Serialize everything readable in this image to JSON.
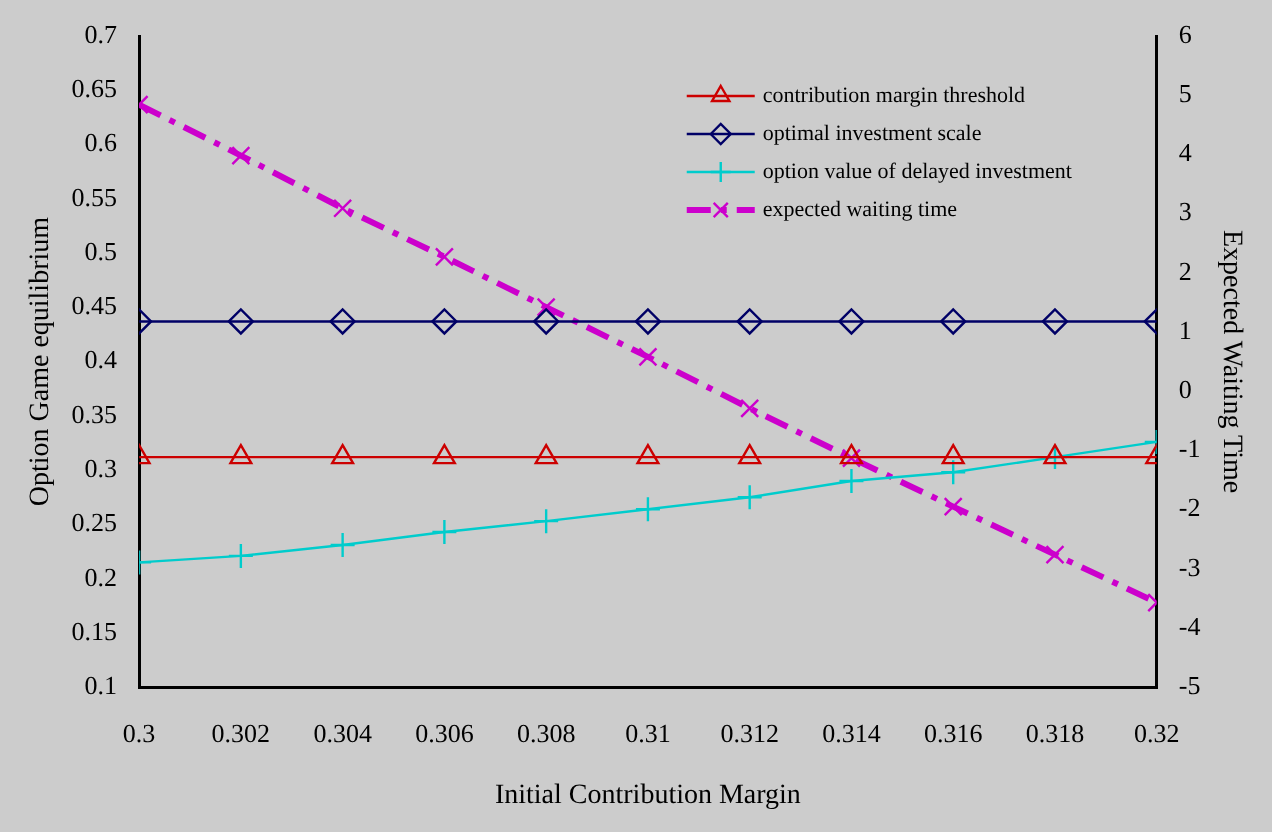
{
  "chart_data": {
    "type": "line",
    "xlabel": "Initial Contribution Margin",
    "ylabel": "Option Game equilibrium",
    "y2label": "Expected Waiting Time",
    "x": [
      0.3,
      0.302,
      0.304,
      0.306,
      0.308,
      0.31,
      0.312,
      0.314,
      0.316,
      0.318,
      0.32
    ],
    "series": [
      {
        "name": "contribution margin threshold",
        "color": "#cc0000",
        "marker": "triangle",
        "line_style": "solid",
        "values": [
          0.312,
          0.312,
          0.312,
          0.312,
          0.312,
          0.312,
          0.312,
          0.312,
          0.312,
          0.312,
          0.312
        ]
      },
      {
        "name": "optimal investment scale",
        "color": "#000066",
        "marker": "diamond",
        "line_style": "solid",
        "values": [
          0.437,
          0.437,
          0.437,
          0.437,
          0.437,
          0.437,
          0.437,
          0.437,
          0.437,
          0.437,
          0.437
        ]
      },
      {
        "name": "option value of delayed investment",
        "color": "#00cccc",
        "marker": "cross",
        "line_style": "solid",
        "values": [
          0.215,
          0.221,
          0.231,
          0.243,
          0.253,
          0.264,
          0.275,
          0.29,
          0.298,
          0.312,
          0.326
        ]
      },
      {
        "name": "expected waiting time",
        "color": "#cc00cc",
        "marker": "x",
        "line_style": "dashed",
        "axis": "y2",
        "values": [
          4.84,
          3.98,
          3.09,
          2.27,
          1.42,
          0.58,
          -0.29,
          -1.13,
          -1.95,
          -2.76,
          -3.57
        ]
      }
    ],
    "xlim": [
      0.3,
      0.32
    ],
    "xticks": [
      0.3,
      0.302,
      0.304,
      0.306,
      0.308,
      0.31,
      0.312,
      0.314,
      0.316,
      0.318,
      0.32
    ],
    "ylim": [
      0.1,
      0.7
    ],
    "yticks": [
      0.1,
      0.15,
      0.2,
      0.25,
      0.3,
      0.35,
      0.4,
      0.45,
      0.5,
      0.55,
      0.6,
      0.65,
      0.7
    ],
    "y2lim": [
      -5,
      6
    ],
    "y2ticks": [
      -5,
      -4,
      -3,
      -2,
      -1,
      0,
      1,
      2,
      3,
      4,
      5,
      6
    ],
    "grid": false,
    "legend": "top right"
  }
}
